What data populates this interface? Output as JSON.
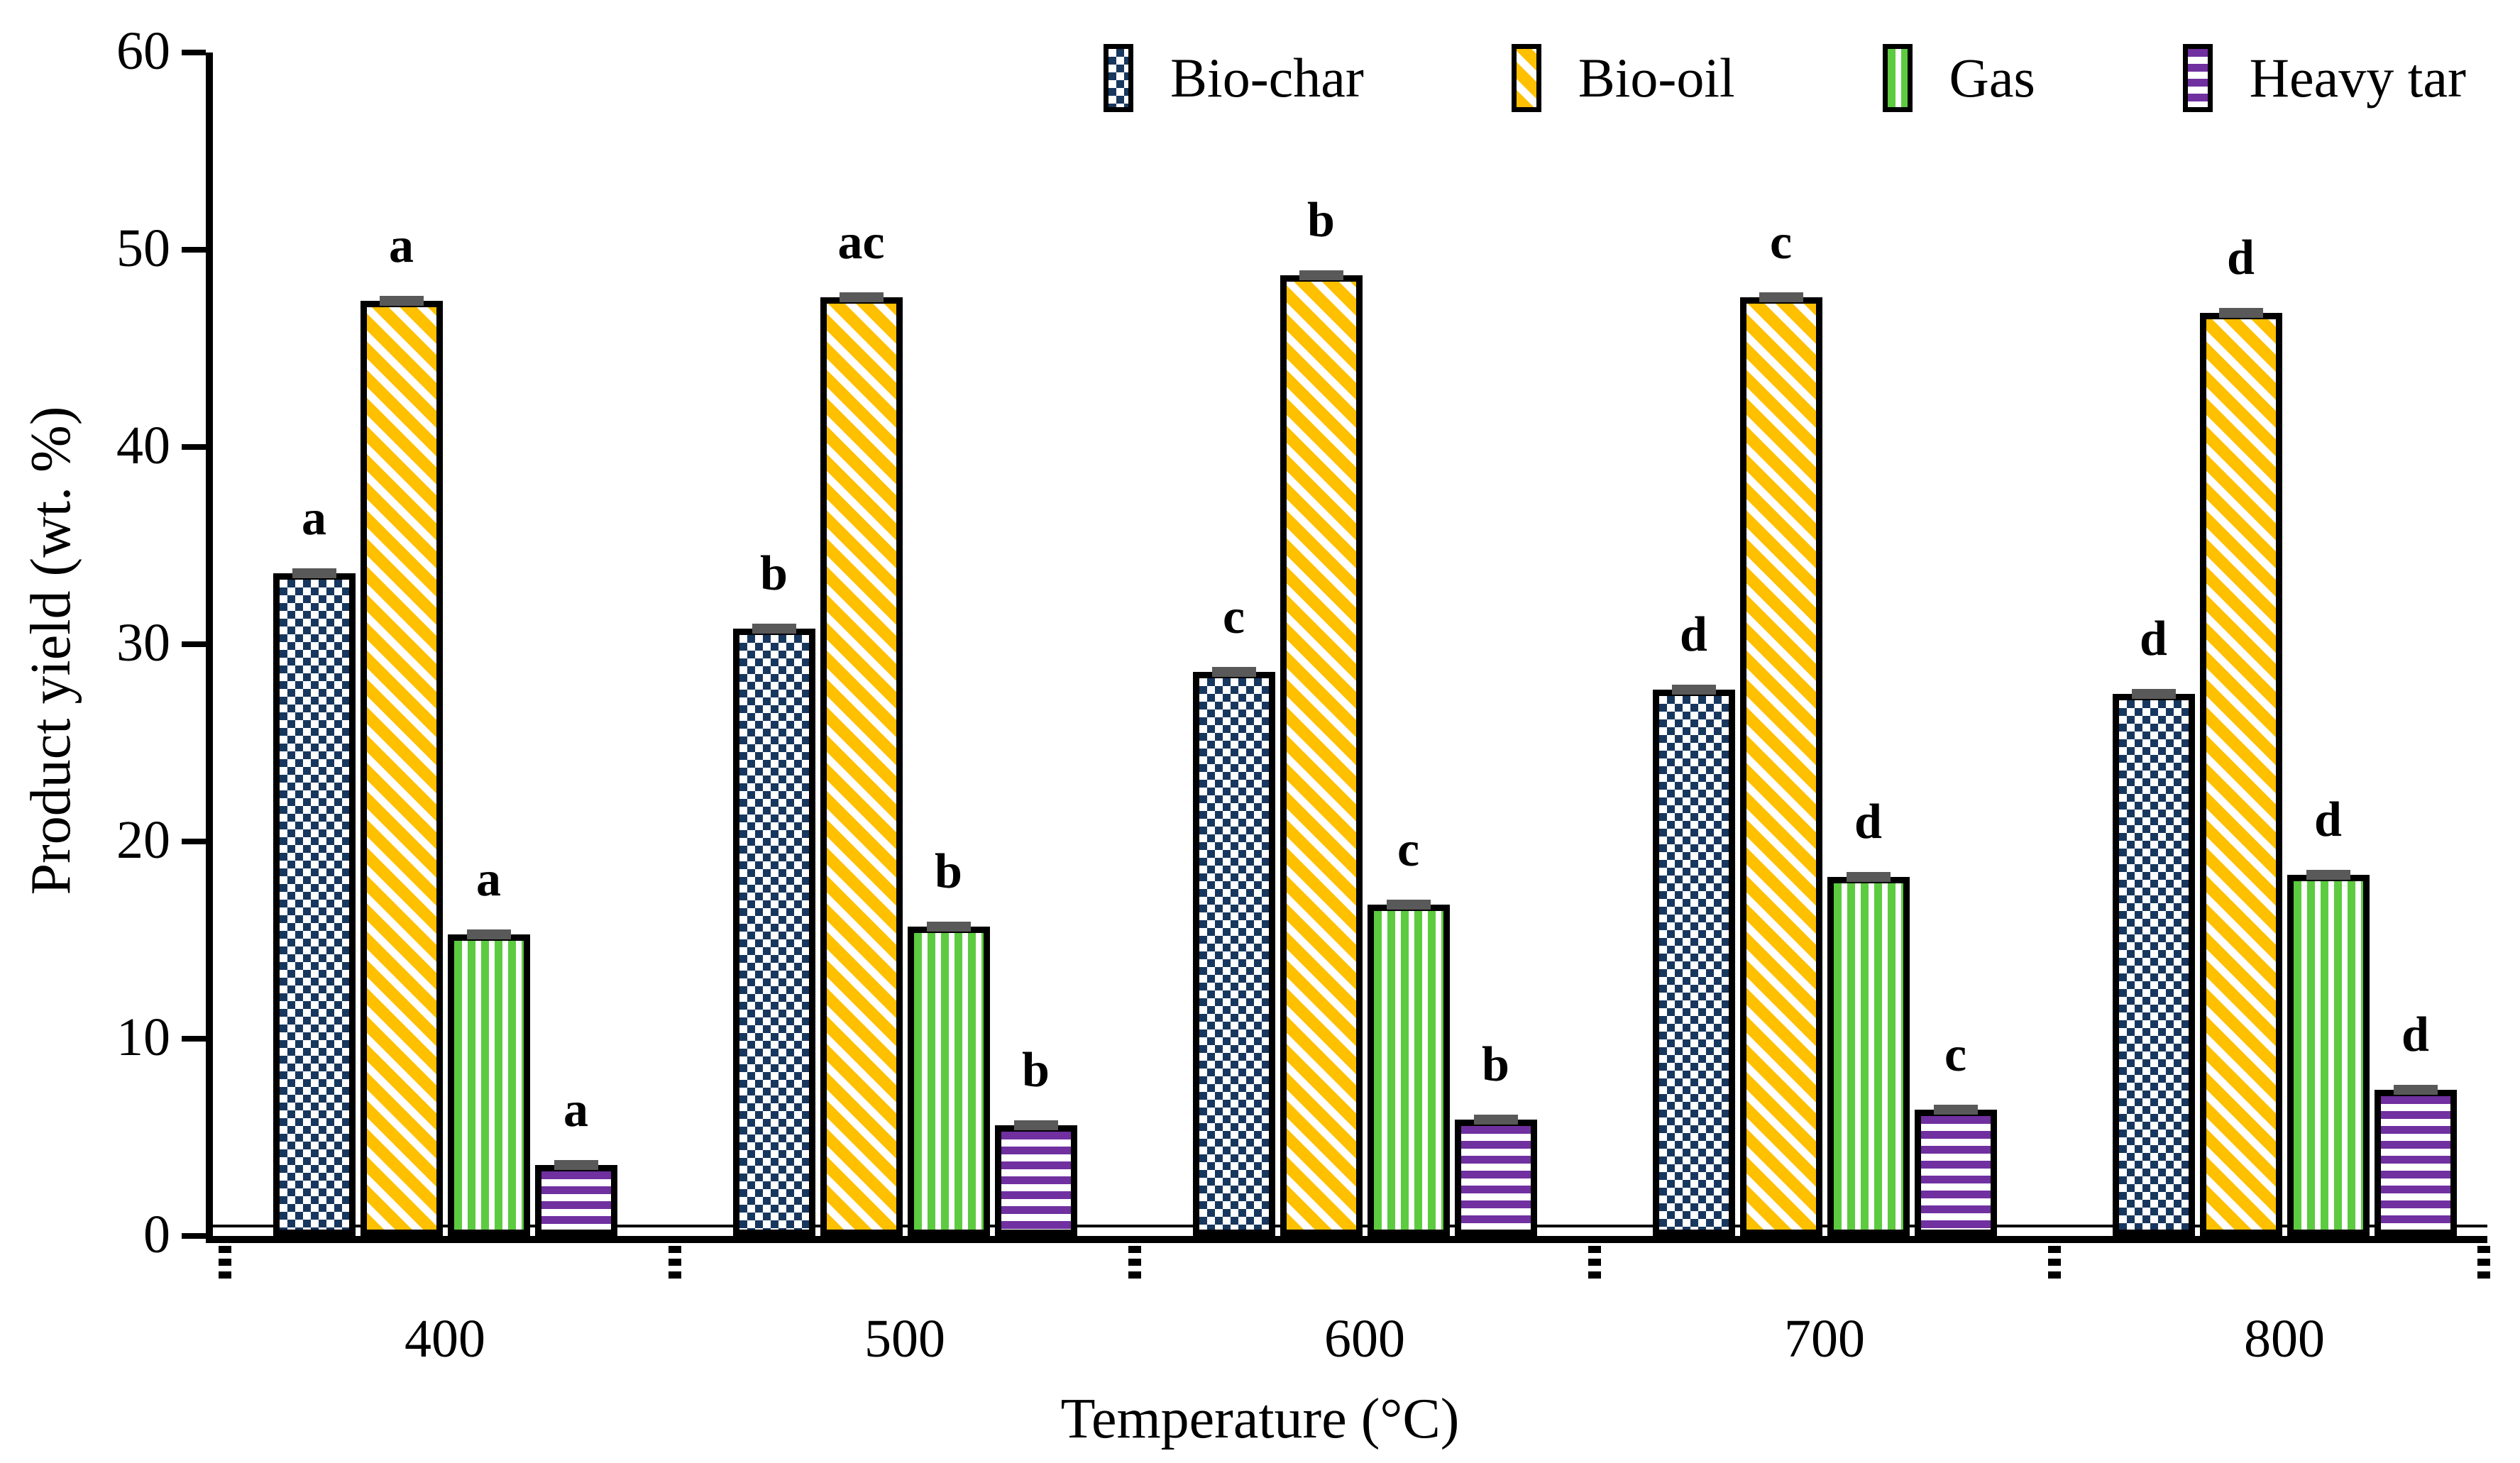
{
  "chart_data": {
    "type": "bar",
    "title": "",
    "xlabel": "Temperature (°C)",
    "ylabel": "Product yield (wt. %)",
    "ylim": [
      0,
      60
    ],
    "yticks": [
      "0",
      "10",
      "20",
      "30",
      "40",
      "50",
      "60"
    ],
    "categories": [
      "400",
      "500",
      "600",
      "700",
      "800"
    ],
    "series": [
      {
        "name": "Bio-char",
        "pattern": "check",
        "color": "#17375E",
        "values": [
          33.6,
          30.8,
          28.6,
          27.7,
          27.5
        ],
        "sig_labels": [
          "a",
          "b",
          "c",
          "d",
          "d"
        ]
      },
      {
        "name": "Bio-oil",
        "pattern": "diag",
        "color": "#FFC000",
        "values": [
          47.4,
          47.6,
          48.7,
          47.6,
          46.8
        ],
        "sig_labels": [
          "a",
          "ac",
          "b",
          "c",
          "d"
        ]
      },
      {
        "name": "Gas",
        "pattern": "vert",
        "color": "#5CCB40",
        "values": [
          15.3,
          15.7,
          16.8,
          18.2,
          18.3
        ],
        "sig_labels": [
          "a",
          "b",
          "c",
          "d",
          "d"
        ]
      },
      {
        "name": "Heavy tar",
        "pattern": "horiz",
        "color": "#7030A0",
        "values": [
          3.6,
          5.6,
          5.9,
          6.4,
          7.4
        ],
        "sig_labels": [
          "a",
          "b",
          "b",
          "c",
          "d"
        ]
      }
    ],
    "error_bars_visible": true,
    "error_bar_color": "#595959",
    "legend_position": "top",
    "grid": "off"
  }
}
